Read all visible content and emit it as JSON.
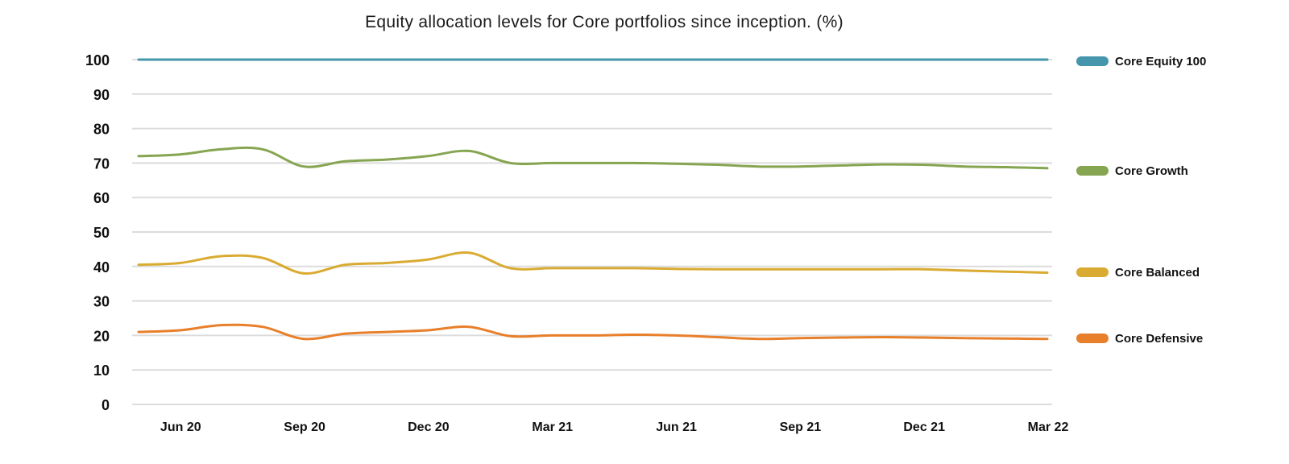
{
  "chart_data": {
    "type": "line",
    "title": "Equity allocation levels for Core portfolios since inception. (%)",
    "xlabel": "",
    "ylabel": "",
    "ylim": [
      0,
      100
    ],
    "yticks": [
      0,
      10,
      20,
      30,
      40,
      50,
      60,
      70,
      80,
      90,
      100
    ],
    "x_tick_labels": [
      "Jun 20",
      "Sep 20",
      "Dec 20",
      "Mar 21",
      "Jun 21",
      "Sep 21",
      "Dec 21",
      "Mar 22"
    ],
    "grid": "horizontal",
    "legend": "right",
    "x": [
      "May 20",
      "Jun 20",
      "Jul 20",
      "Aug 20",
      "Sep 20",
      "Oct 20",
      "Nov 20",
      "Dec 20",
      "Jan 21",
      "Feb 21",
      "Mar 21",
      "Apr 21",
      "May 21",
      "Jun 21",
      "Jul 21",
      "Aug 21",
      "Sep 21",
      "Oct 21",
      "Nov 21",
      "Dec 21",
      "Jan 22",
      "Feb 22",
      "Mar 22"
    ],
    "series": [
      {
        "name": "Core Equity 100",
        "color": "#4596ac",
        "values": [
          100,
          100,
          100,
          100,
          100,
          100,
          100,
          100,
          100,
          100,
          100,
          100,
          100,
          100,
          100,
          100,
          100,
          100,
          100,
          100,
          100,
          100,
          100
        ]
      },
      {
        "name": "Core Growth",
        "color": "#86a551",
        "values": [
          72,
          72.5,
          74,
          74,
          69,
          70.5,
          71,
          72,
          73.5,
          70,
          70,
          70,
          70,
          69.8,
          69.5,
          69,
          69,
          69.3,
          69.6,
          69.5,
          69,
          68.8,
          68.5
        ]
      },
      {
        "name": "Core Balanced",
        "color": "#d9ab32",
        "values": [
          40.5,
          41,
          43,
          42.5,
          38,
          40.5,
          41,
          42,
          44,
          39.5,
          39.5,
          39.5,
          39.5,
          39.3,
          39.2,
          39.2,
          39.2,
          39.2,
          39.2,
          39.2,
          38.8,
          38.5,
          38.2
        ]
      },
      {
        "name": "Core Defensive",
        "color": "#e87f2b",
        "values": [
          21,
          21.5,
          23,
          22.5,
          19,
          20.5,
          21,
          21.5,
          22.5,
          19.8,
          20,
          20,
          20.2,
          20,
          19.5,
          19,
          19.2,
          19.4,
          19.5,
          19.4,
          19.2,
          19.1,
          19
        ]
      }
    ]
  }
}
